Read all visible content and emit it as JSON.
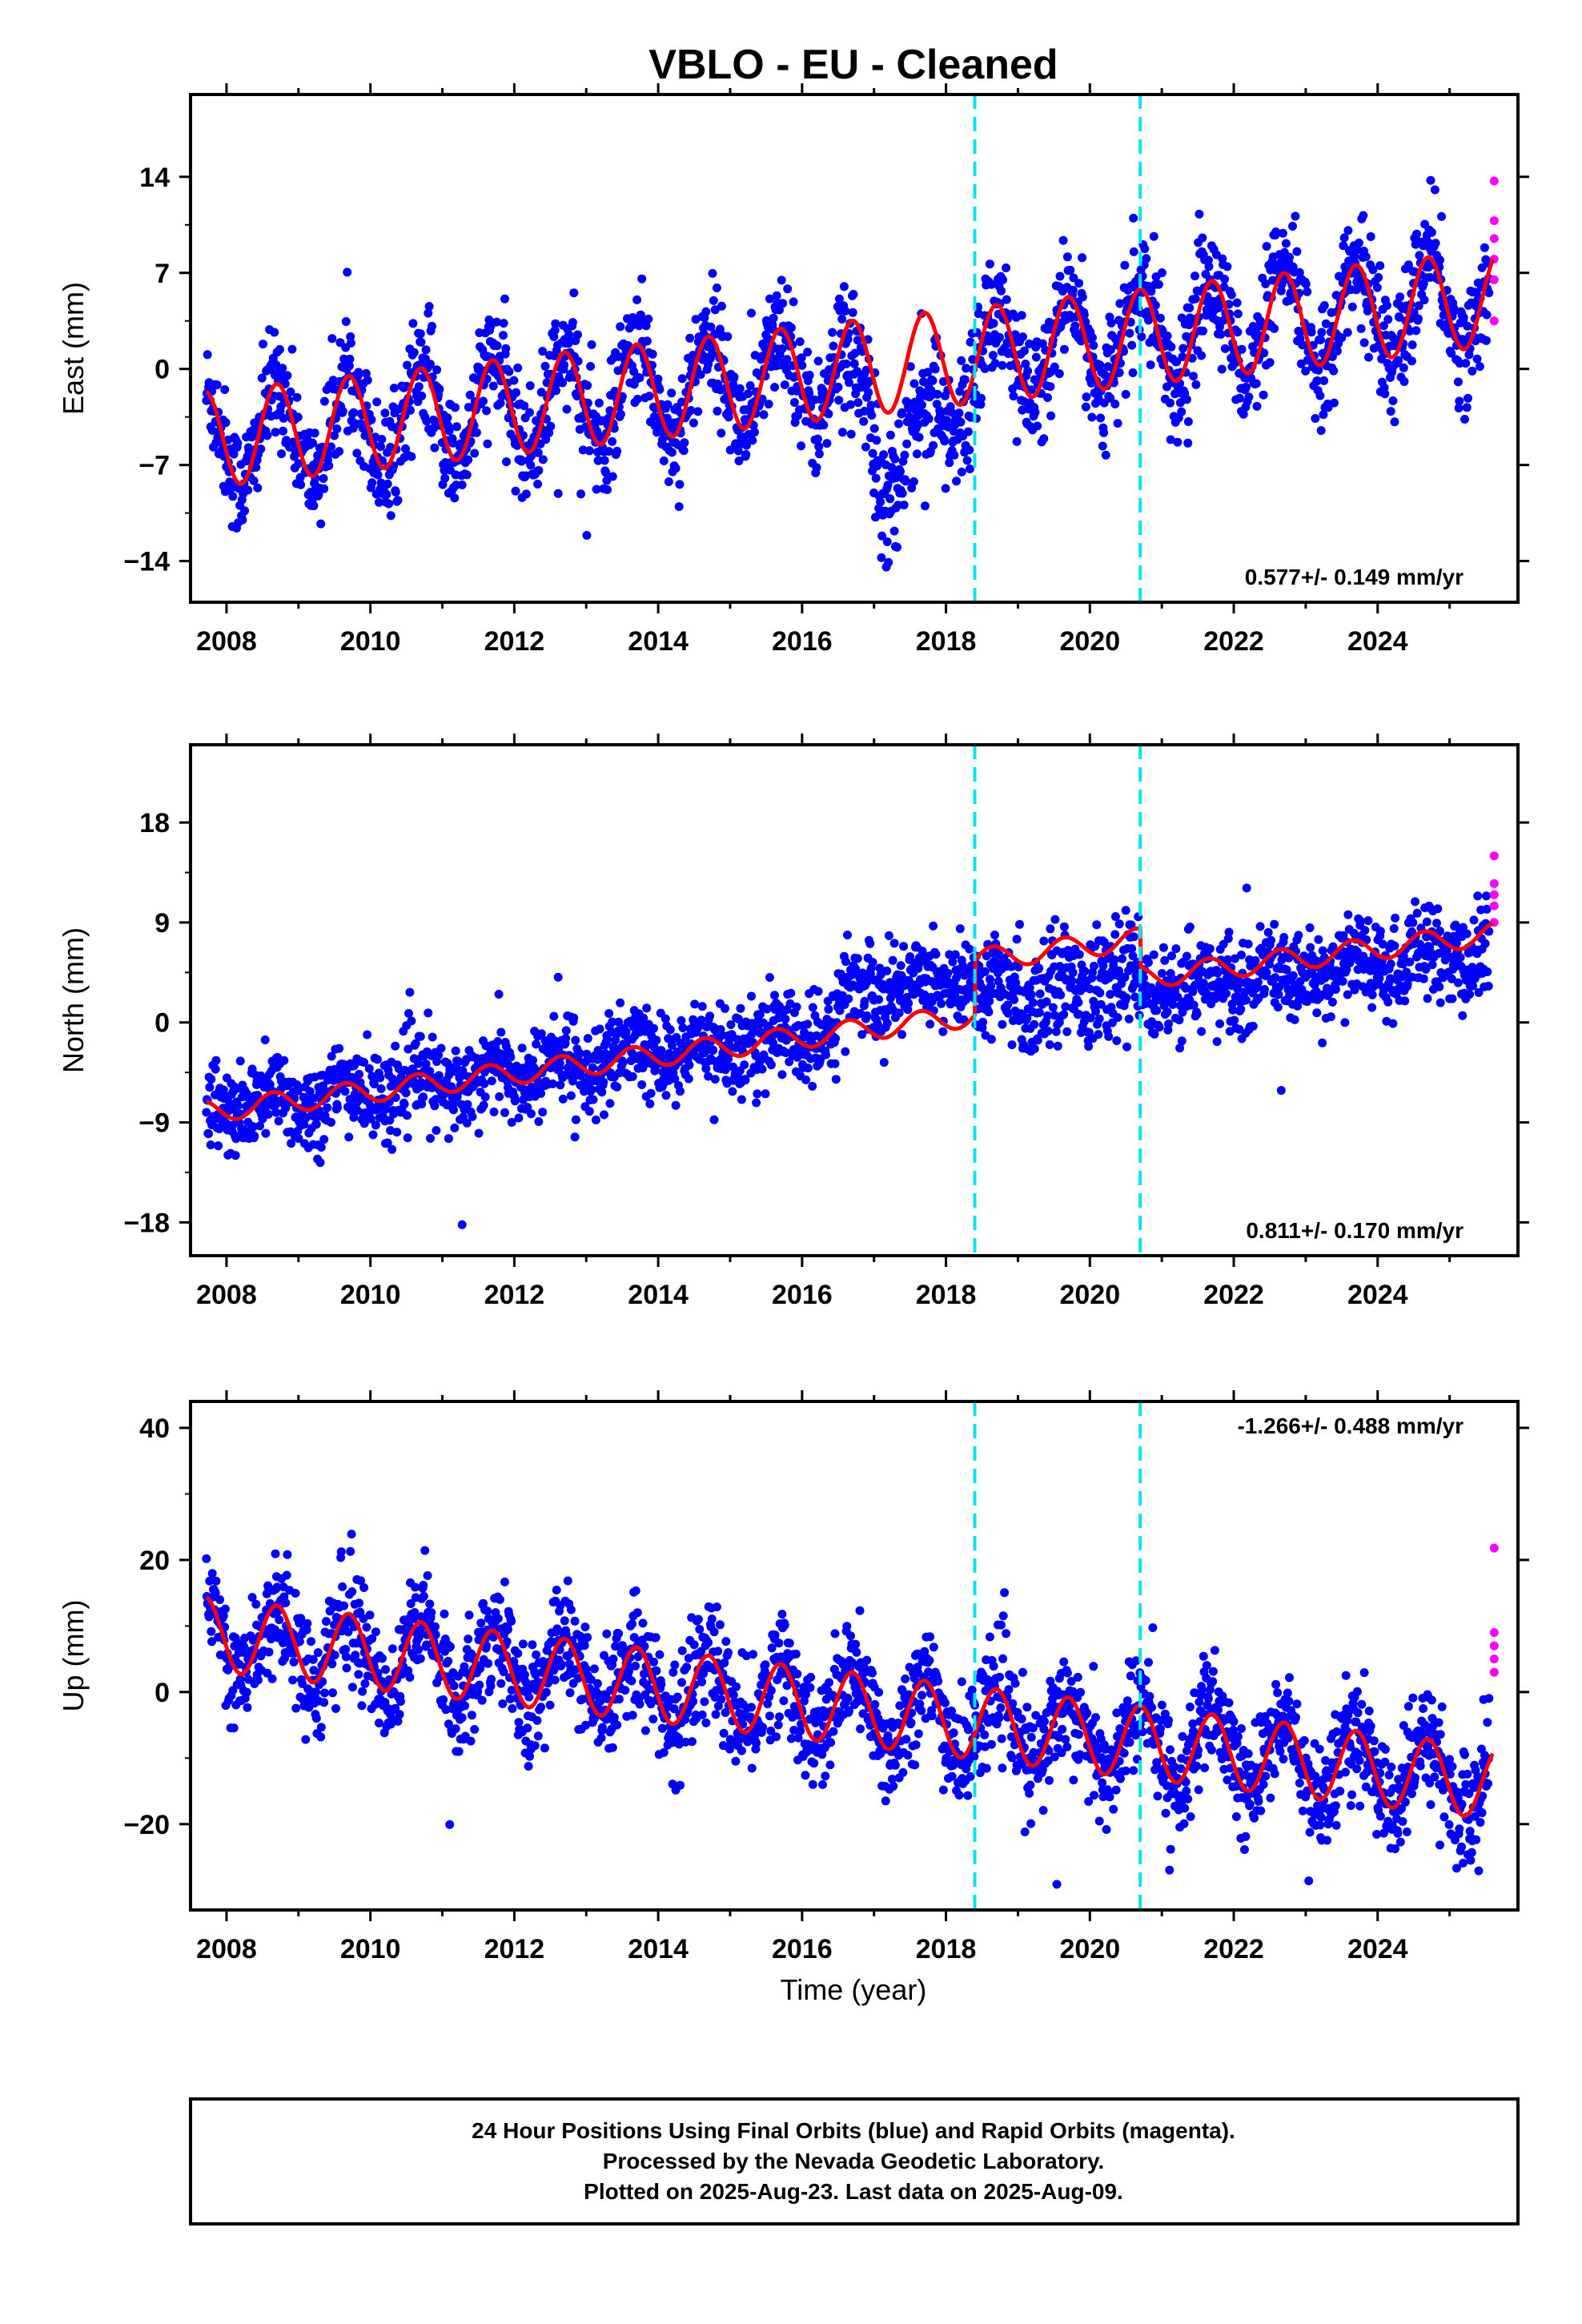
{
  "title": "VBLO  - EU - Cleaned",
  "colors": {
    "final_orbits": "#0000ff",
    "rapid_orbits": "#ff00ff",
    "model": "#ff0000",
    "breaks": "#00e5ee",
    "frame": "#000000"
  },
  "chart_data": [
    {
      "type": "scatter",
      "id": "east",
      "ylabel": "East (mm)",
      "ylim": [
        -17,
        20
      ],
      "yticks": [
        -14,
        -7,
        0,
        7,
        14
      ],
      "xlim": [
        2007.5,
        2025.95
      ],
      "xticks": [
        2008,
        2010,
        2012,
        2014,
        2016,
        2018,
        2020,
        2022,
        2024
      ],
      "rate_text": "0.577+/- 0.149 mm/yr",
      "trend": {
        "intercept_2008": -5.0,
        "slope": 0.577
      },
      "seasonal_amplitude": 3.5,
      "seasonal_phase": 0.45,
      "breaks": [
        2018.4,
        2020.7
      ],
      "final_orbits_last": 2025.55,
      "rapid_orbits_values": [
        13.7,
        10.8,
        9.5,
        8.0,
        6.5,
        3.5
      ]
    },
    {
      "type": "scatter",
      "id": "north",
      "ylabel": "North (mm)",
      "ylim": [
        -21,
        25
      ],
      "yticks": [
        -18,
        -9,
        0,
        9,
        18
      ],
      "xlim": [
        2007.5,
        2025.95
      ],
      "xticks": [
        2008,
        2010,
        2012,
        2014,
        2016,
        2018,
        2020,
        2022,
        2024
      ],
      "rate_text": "0.811+/- 0.170 mm/yr",
      "trend": {
        "intercept_2008": -7.8,
        "slope": 0.811
      },
      "seasonal_amplitude": 1.0,
      "seasonal_phase": 0.4,
      "breaks": [
        2018.4,
        2020.7
      ],
      "final_orbits_last": 2025.55,
      "rapid_orbits_values": [
        15.0,
        12.5,
        11.5,
        10.5,
        9.0
      ]
    },
    {
      "type": "scatter",
      "id": "up",
      "ylabel": "Up (mm)",
      "ylim": [
        -33,
        44
      ],
      "yticks": [
        -20,
        0,
        20,
        40
      ],
      "xlim": [
        2007.5,
        2025.95
      ],
      "xticks": [
        2008,
        2010,
        2012,
        2014,
        2016,
        2018,
        2020,
        2022,
        2024
      ],
      "rate_text": "-1.266+/- 0.488 mm/yr",
      "trend": {
        "intercept_2008": 8.5,
        "slope": -1.266
      },
      "seasonal_amplitude": 5.5,
      "seasonal_phase": 0.45,
      "breaks": [
        2018.4,
        2020.7
      ],
      "final_orbits_last": 2025.55,
      "rapid_orbits_values": [
        21.8,
        9.0,
        7.0,
        5.0,
        3.0
      ]
    }
  ],
  "xlabel": "Time (year)",
  "footer": {
    "line1": "24 Hour Positions Using Final Orbits (blue) and Rapid Orbits (magenta).",
    "line2": "Processed by the Nevada Geodetic Laboratory.",
    "line3": "Plotted on 2025-Aug-23. Last data on 2025-Aug-09."
  }
}
